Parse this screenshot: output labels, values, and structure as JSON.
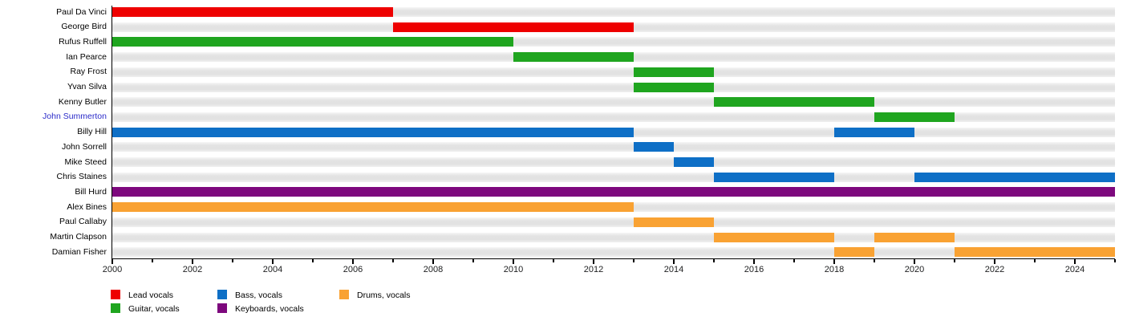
{
  "chart_data": {
    "type": "timeline",
    "title": "",
    "x_axis": {
      "min_year": 2000,
      "max_year": 2025,
      "major_tick_interval": 2,
      "minor_tick_interval": 1,
      "tick_labels": [
        "2000",
        "2002",
        "2004",
        "2006",
        "2008",
        "2010",
        "2012",
        "2014",
        "2016",
        "2018",
        "2020",
        "2022",
        "2024"
      ]
    },
    "legend": [
      {
        "id": "lead",
        "label": "Lead vocals",
        "color": "#EE0000"
      },
      {
        "id": "guitar",
        "label": "Guitar, vocals",
        "color": "#1FA51F"
      },
      {
        "id": "bass",
        "label": "Bass, vocals",
        "color": "#0E6FC6"
      },
      {
        "id": "keyboards",
        "label": "Keyboards, vocals",
        "color": "#7D087D"
      },
      {
        "id": "drums",
        "label": "Drums, vocals",
        "color": "#F9A233"
      }
    ],
    "members": [
      {
        "name": "Paul Da Vinci",
        "role": "lead",
        "is_link": false,
        "periods": [
          [
            2000,
            2007
          ]
        ]
      },
      {
        "name": "George Bird",
        "role": "lead",
        "is_link": false,
        "periods": [
          [
            2007,
            2013
          ]
        ]
      },
      {
        "name": "Rufus Ruffell",
        "role": "guitar",
        "is_link": false,
        "periods": [
          [
            2000,
            2010
          ]
        ]
      },
      {
        "name": "Ian Pearce",
        "role": "guitar",
        "is_link": false,
        "periods": [
          [
            2010,
            2013
          ]
        ]
      },
      {
        "name": "Ray Frost",
        "role": "guitar",
        "is_link": false,
        "periods": [
          [
            2013,
            2015
          ]
        ]
      },
      {
        "name": "Yvan Silva",
        "role": "guitar",
        "is_link": false,
        "periods": [
          [
            2013,
            2015
          ]
        ]
      },
      {
        "name": "Kenny Butler",
        "role": "guitar",
        "is_link": false,
        "periods": [
          [
            2015,
            2019
          ]
        ]
      },
      {
        "name": "John Summerton",
        "role": "guitar",
        "is_link": true,
        "periods": [
          [
            2019,
            2021
          ]
        ]
      },
      {
        "name": "Billy Hill",
        "role": "bass",
        "is_link": false,
        "periods": [
          [
            2000,
            2013
          ],
          [
            2018,
            2020
          ]
        ]
      },
      {
        "name": "John Sorrell",
        "role": "bass",
        "is_link": false,
        "periods": [
          [
            2013,
            2014
          ]
        ]
      },
      {
        "name": "Mike Steed",
        "role": "bass",
        "is_link": false,
        "periods": [
          [
            2014,
            2015
          ]
        ]
      },
      {
        "name": "Chris Staines",
        "role": "bass",
        "is_link": false,
        "periods": [
          [
            2015,
            2018
          ],
          [
            2020,
            2025
          ]
        ]
      },
      {
        "name": "Bill Hurd",
        "role": "keyboards",
        "is_link": false,
        "periods": [
          [
            2000,
            2025
          ]
        ]
      },
      {
        "name": "Alex Bines",
        "role": "drums",
        "is_link": false,
        "periods": [
          [
            2000,
            2013
          ]
        ]
      },
      {
        "name": "Paul Callaby",
        "role": "drums",
        "is_link": false,
        "periods": [
          [
            2013,
            2015
          ]
        ]
      },
      {
        "name": "Martin Clapson",
        "role": "drums",
        "is_link": false,
        "periods": [
          [
            2015,
            2018
          ],
          [
            2019,
            2021
          ]
        ]
      },
      {
        "name": "Damian Fisher",
        "role": "drums",
        "is_link": false,
        "periods": [
          [
            2018,
            2019
          ],
          [
            2021,
            2025
          ]
        ]
      }
    ],
    "colors": {
      "link_text": "#2B2BC9",
      "track": "#e3e3e3",
      "axis": "#000000",
      "tick_text": "#202122"
    }
  }
}
